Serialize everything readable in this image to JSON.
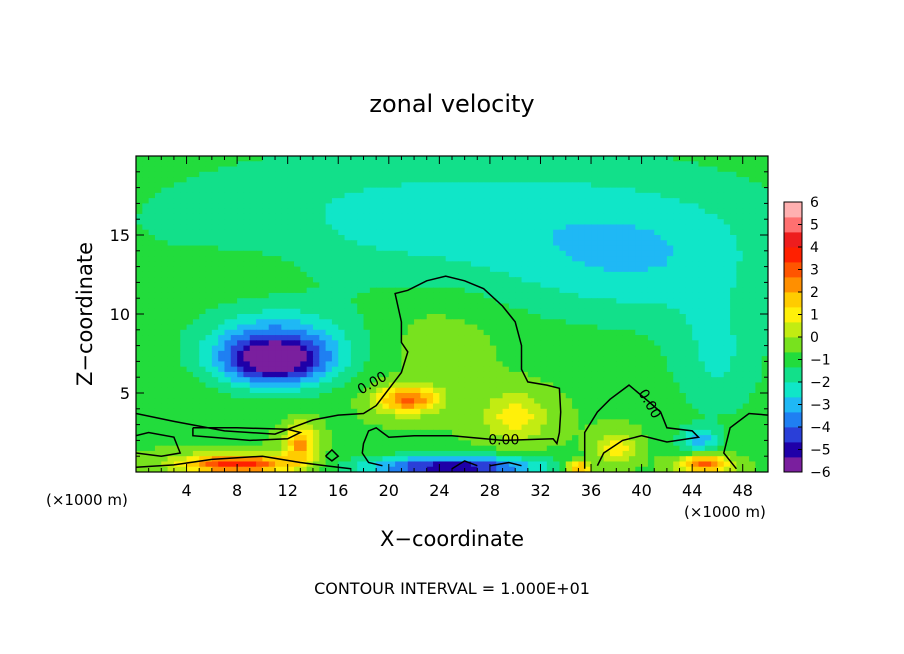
{
  "chart_data": {
    "type": "heatmap",
    "title": "zonal velocity",
    "xlabel": "X−coordinate",
    "ylabel": "Z−coordinate",
    "x_unit_left": "(×1000 m)",
    "x_unit_right": "(×1000 m)",
    "xlim": [
      0,
      50
    ],
    "ylim": [
      0,
      20
    ],
    "xticks": [
      4,
      8,
      12,
      16,
      20,
      24,
      28,
      32,
      36,
      40,
      44,
      48
    ],
    "xtick_labels": [
      "4",
      "8",
      "12",
      "16",
      "20",
      "24",
      "28",
      "32",
      "36",
      "40",
      "44",
      "48"
    ],
    "yticks": [
      5,
      10,
      15
    ],
    "ytick_labels": [
      "5",
      "10",
      "15"
    ],
    "footer": "CONTOUR INTERVAL = 1.000E+01",
    "contour_labels": [
      {
        "text": "0.00",
        "x": 18.7,
        "y": 5.6,
        "angle": -30
      },
      {
        "text": "0.00",
        "x": 29.1,
        "y": 2.0,
        "angle": 0
      },
      {
        "text": "0.00",
        "x": 40.6,
        "y": 4.3,
        "angle": 60
      }
    ],
    "colorbar": {
      "min": -6,
      "max": 6,
      "tick_labels": [
        "6",
        "5",
        "4",
        "3",
        "2",
        "1",
        "0",
        "−1",
        "−2",
        "−3",
        "−4",
        "−5",
        "−6"
      ],
      "colors": [
        "#7a1f9e",
        "#1f00a8",
        "#2a3fd8",
        "#1f7ff2",
        "#1fb8f5",
        "#10e6c8",
        "#12e08a",
        "#22dc3c",
        "#78e21e",
        "#c2ec12",
        "#fff00a",
        "#ffcc00",
        "#ff8f00",
        "#ff5500",
        "#ff2000",
        "#ee1d1d",
        "#ff7070",
        "#ffb0b0"
      ]
    },
    "features": [
      {
        "x": 25,
        "y": 16,
        "rx": 26,
        "ry": 5,
        "value": -1.6
      },
      {
        "x": 40,
        "y": 13,
        "rx": 10,
        "ry": 4,
        "value": -1.2
      },
      {
        "x": 10,
        "y": 12,
        "rx": 6,
        "ry": 4,
        "value": 0.4
      },
      {
        "x": 24,
        "y": 9,
        "rx": 5,
        "ry": 3,
        "value": 0.5
      },
      {
        "x": 11,
        "y": 8,
        "rx": 6,
        "ry": 2.5,
        "value": -2.8
      },
      {
        "x": 11,
        "y": 7,
        "rx": 4,
        "ry": 1.5,
        "value": -3.6
      },
      {
        "x": 46,
        "y": 7,
        "rx": 4,
        "ry": 4,
        "value": -1.3
      },
      {
        "x": 21.5,
        "y": 4.6,
        "rx": 2.5,
        "ry": 0.9,
        "value": 3.5
      },
      {
        "x": 30,
        "y": 3.5,
        "rx": 2.5,
        "ry": 1.5,
        "value": 1.8
      },
      {
        "x": 13,
        "y": 1.8,
        "rx": 1.2,
        "ry": 1.2,
        "value": 3.0
      },
      {
        "x": 25,
        "y": 0.3,
        "rx": 7,
        "ry": 0.7,
        "value": -4.5
      },
      {
        "x": 8,
        "y": 0.5,
        "rx": 4.5,
        "ry": 0.6,
        "value": 4.5
      },
      {
        "x": 45,
        "y": 0.5,
        "rx": 2,
        "ry": 0.6,
        "value": 3.8
      },
      {
        "x": 44.5,
        "y": 2.0,
        "rx": 1.5,
        "ry": 0.8,
        "value": -2.3
      },
      {
        "x": 38,
        "y": 1.5,
        "rx": 1.5,
        "ry": 1.0,
        "value": 1.8
      },
      {
        "x": 35,
        "y": 0.3,
        "rx": 1.0,
        "ry": 0.4,
        "value": 3.5
      }
    ],
    "contours": [
      [
        [
          0,
          3.7
        ],
        [
          3,
          3.2
        ],
        [
          7,
          2.6
        ],
        [
          11,
          2.4
        ],
        [
          14,
          3.3
        ],
        [
          16,
          3.6
        ],
        [
          18,
          3.7
        ],
        [
          19,
          4.2
        ],
        [
          21,
          6.3
        ],
        [
          21.5,
          7.6
        ],
        [
          21,
          8.2
        ],
        [
          21,
          9.5
        ],
        [
          20.5,
          11.3
        ],
        [
          21.5,
          11.5
        ],
        [
          23,
          12.1
        ],
        [
          24.5,
          12.4
        ],
        [
          26,
          12.1
        ],
        [
          27.5,
          11.6
        ],
        [
          29,
          10.5
        ],
        [
          30,
          9.5
        ],
        [
          30.5,
          8
        ],
        [
          30.5,
          6.5
        ],
        [
          31,
          5.7
        ],
        [
          32.5,
          5.5
        ],
        [
          33.5,
          5.3
        ],
        [
          33.6,
          3.8
        ],
        [
          33.5,
          2.5
        ],
        [
          33.3,
          1.8
        ],
        [
          33,
          2.1
        ],
        [
          29,
          2.0
        ],
        [
          25,
          2.3
        ],
        [
          22,
          2.3
        ],
        [
          20,
          2.2
        ],
        [
          19,
          2.8
        ],
        [
          18.4,
          2.6
        ],
        [
          18,
          1.8
        ],
        [
          17.9,
          1.2
        ],
        [
          18.4,
          0.6
        ],
        [
          19.5,
          0.4
        ]
      ],
      [
        [
          4.5,
          2.8
        ],
        [
          8,
          2.8
        ],
        [
          12,
          2.7
        ],
        [
          13,
          2.5
        ],
        [
          12,
          2.1
        ],
        [
          9,
          2.0
        ],
        [
          6,
          2.2
        ],
        [
          4.5,
          2.3
        ],
        [
          4.5,
          2.8
        ]
      ],
      [
        [
          35.5,
          0.2
        ],
        [
          35.5,
          2.5
        ],
        [
          36.5,
          3.8
        ],
        [
          37.5,
          4.6
        ],
        [
          39,
          5.5
        ],
        [
          40.5,
          4.5
        ],
        [
          41.5,
          3.8
        ],
        [
          42,
          2.8
        ],
        [
          44,
          2.6
        ],
        [
          44.5,
          2.2
        ],
        [
          42,
          1.9
        ],
        [
          40,
          2.3
        ],
        [
          38.5,
          2.0
        ],
        [
          37,
          1.2
        ],
        [
          36.5,
          0.4
        ]
      ],
      [
        [
          47.5,
          0.2
        ],
        [
          46.5,
          1.2
        ],
        [
          47,
          2.8
        ],
        [
          48.5,
          3.7
        ],
        [
          50,
          3.6
        ]
      ],
      [
        [
          0,
          0.3
        ],
        [
          3,
          0.45
        ],
        [
          6,
          0.8
        ],
        [
          10,
          1.0
        ],
        [
          13,
          0.6
        ],
        [
          15,
          0.4
        ],
        [
          17,
          0.2
        ]
      ],
      [
        [
          0,
          1.2
        ],
        [
          2,
          1.0
        ],
        [
          3.5,
          1.2
        ],
        [
          3,
          2.2
        ],
        [
          1,
          2.5
        ],
        [
          0,
          2.3
        ]
      ],
      [
        [
          15,
          1.0
        ],
        [
          15.5,
          1.4
        ],
        [
          16,
          1.0
        ],
        [
          15.5,
          0.7
        ],
        [
          15,
          1.0
        ]
      ],
      [
        [
          28,
          0.4
        ],
        [
          29.5,
          0.6
        ],
        [
          30.5,
          0.4
        ]
      ],
      [
        [
          25,
          0.2
        ],
        [
          26,
          0.7
        ],
        [
          27,
          0.4
        ]
      ]
    ]
  }
}
